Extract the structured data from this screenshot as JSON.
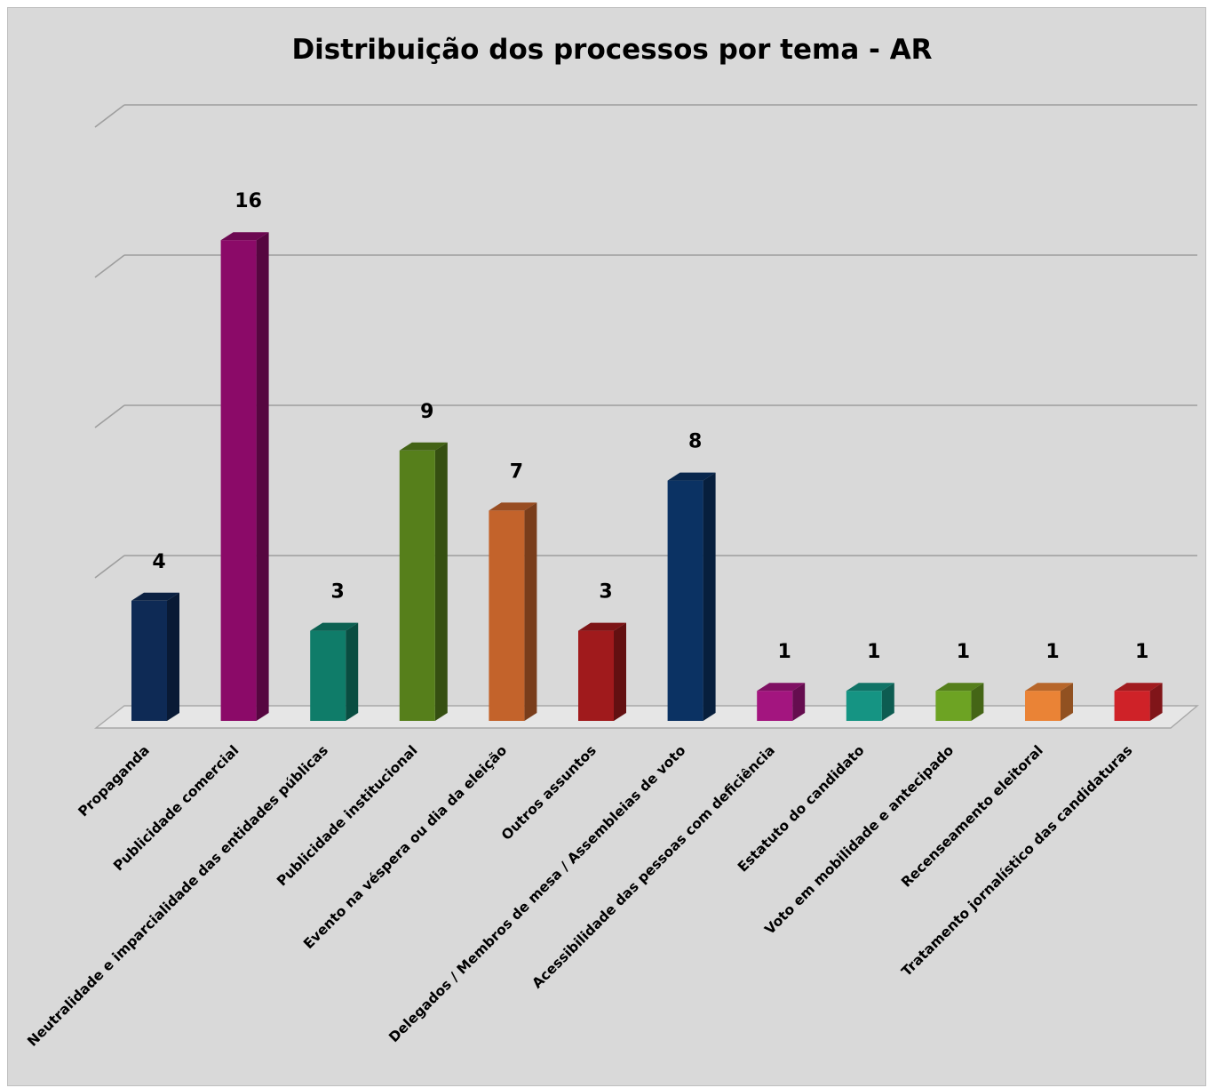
{
  "chart_data": {
    "type": "bar",
    "title": "Distribuição dos processos por tema - AR",
    "categories": [
      "Propaganda",
      "Publicidade comercial",
      "Neutralidade e imparcialidade das entidades públicas",
      "Publicidade institucional",
      "Evento na véspera ou dia da eleição",
      "Outros assuntos",
      "Delegados / Membros de mesa / Assembleias de voto",
      "Acessibilidade das pessoas com deficiência",
      "Estatuto do candidato",
      "Voto em mobilidade e antecipado",
      "Recenseamento eleitoral",
      "Tratamento jornalístico das candidaturas"
    ],
    "values": [
      4,
      16,
      3,
      9,
      7,
      3,
      8,
      1,
      1,
      1,
      1,
      1
    ],
    "colors": [
      "#0e2a55",
      "#8b0a68",
      "#0f7c69",
      "#567f1b",
      "#c3632b",
      "#a01a1c",
      "#0b3263",
      "#a3157f",
      "#159483",
      "#6da323",
      "#ea8336",
      "#cf2228"
    ],
    "ylim": [
      0,
      20
    ],
    "gridlines": [
      0,
      5,
      10,
      15,
      20
    ],
    "grid": true,
    "legend": "none",
    "data_labels": true,
    "style": "3d-column"
  }
}
